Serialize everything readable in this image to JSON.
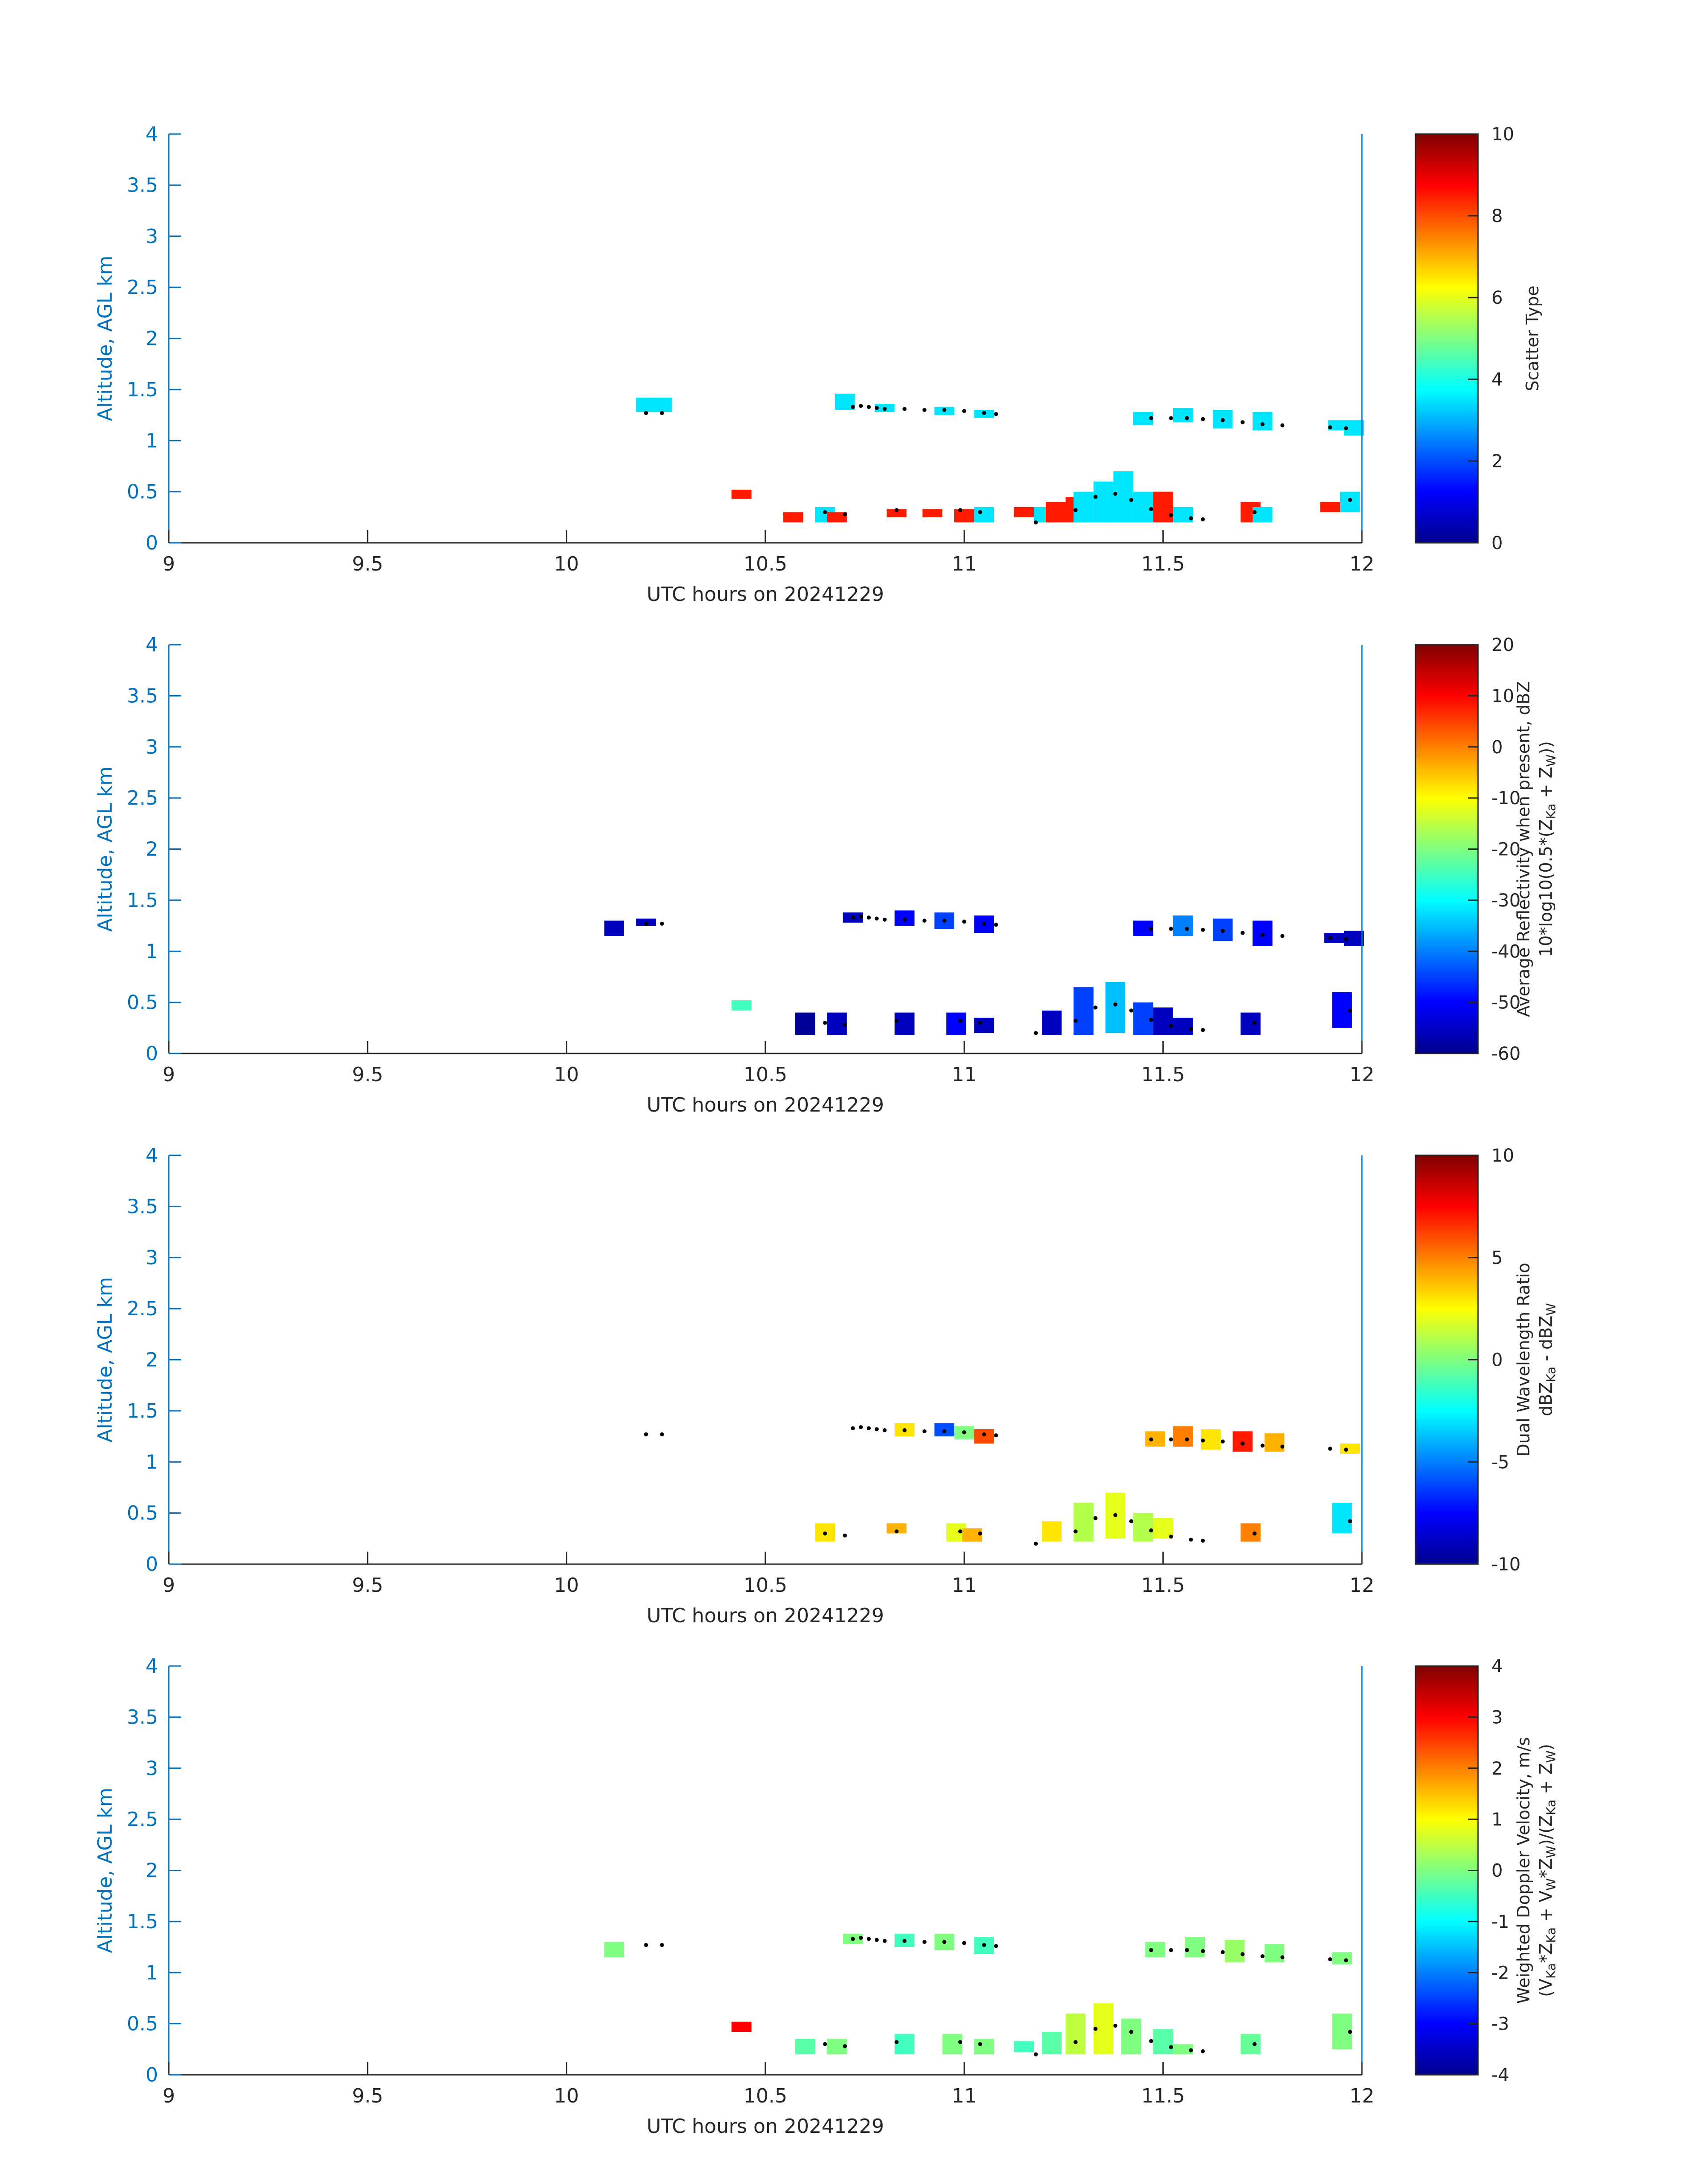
{
  "chart_data": [
    {
      "type": "heatmap",
      "panel": "scatter-type",
      "xlabel": "UTC hours on 20241229",
      "ylabel": "Altitude, AGL km",
      "xlim": [
        9,
        12
      ],
      "ylim": [
        0,
        4
      ],
      "xticks": [
        "9",
        "9.5",
        "10",
        "10.5",
        "11",
        "11.5",
        "12"
      ],
      "yticks": [
        "0",
        "0.5",
        "1",
        "1.5",
        "2",
        "2.5",
        "3",
        "3.5",
        "4"
      ],
      "colorbar": {
        "label_lines": [
          "Scatter Type"
        ],
        "clim": [
          0,
          10
        ],
        "ticks": [
          "0",
          "2",
          "4",
          "6",
          "8",
          "10"
        ]
      },
      "cells": [
        [
          10.2,
          1.28,
          1.42,
          3.5
        ],
        [
          10.24,
          1.28,
          1.42,
          3.5
        ],
        [
          10.7,
          1.3,
          1.46,
          3.5
        ],
        [
          10.8,
          1.28,
          1.36,
          3.5
        ],
        [
          10.95,
          1.25,
          1.33,
          3.5
        ],
        [
          11.05,
          1.22,
          1.3,
          3.5
        ],
        [
          11.45,
          1.15,
          1.28,
          3.5
        ],
        [
          11.55,
          1.18,
          1.32,
          3.5
        ],
        [
          11.65,
          1.12,
          1.3,
          3.5
        ],
        [
          11.75,
          1.1,
          1.28,
          3.5
        ],
        [
          11.94,
          1.1,
          1.2,
          3.5
        ],
        [
          11.98,
          1.05,
          1.2,
          3.5
        ],
        [
          10.44,
          0.43,
          0.52,
          8.5
        ],
        [
          10.57,
          0.2,
          0.3,
          8.5
        ],
        [
          10.65,
          0.2,
          0.35,
          3.5
        ],
        [
          10.68,
          0.2,
          0.3,
          8.5
        ],
        [
          10.83,
          0.25,
          0.33,
          8.5
        ],
        [
          10.92,
          0.25,
          0.33,
          8.5
        ],
        [
          11.0,
          0.2,
          0.33,
          8.5
        ],
        [
          11.05,
          0.2,
          0.35,
          3.5
        ],
        [
          11.15,
          0.25,
          0.35,
          8.5
        ],
        [
          11.2,
          0.2,
          0.35,
          3.5
        ],
        [
          11.23,
          0.2,
          0.4,
          8.5
        ],
        [
          11.28,
          0.2,
          0.45,
          8.5
        ],
        [
          11.3,
          0.2,
          0.5,
          3.5
        ],
        [
          11.35,
          0.2,
          0.6,
          3.5
        ],
        [
          11.4,
          0.2,
          0.7,
          3.5
        ],
        [
          11.45,
          0.2,
          0.5,
          3.5
        ],
        [
          11.5,
          0.2,
          0.5,
          8.5
        ],
        [
          11.55,
          0.2,
          0.35,
          3.5
        ],
        [
          11.72,
          0.2,
          0.4,
          8.5
        ],
        [
          11.75,
          0.2,
          0.35,
          3.5
        ],
        [
          11.92,
          0.3,
          0.4,
          8.5
        ],
        [
          11.97,
          0.3,
          0.5,
          3.5
        ]
      ]
    },
    {
      "type": "heatmap",
      "panel": "reflectivity",
      "xlabel": "UTC hours on 20241229",
      "ylabel": "Altitude, AGL km",
      "xlim": [
        9,
        12
      ],
      "ylim": [
        0,
        4
      ],
      "xticks": [
        "9",
        "9.5",
        "10",
        "10.5",
        "11",
        "11.5",
        "12"
      ],
      "yticks": [
        "0",
        "0.5",
        "1",
        "1.5",
        "2",
        "2.5",
        "3",
        "3.5",
        "4"
      ],
      "colorbar": {
        "label_lines": [
          "Average Reflectivity when present, dBZ",
          "10*log10(0.5*(Z",
          "Ka",
          " + Z",
          "W",
          "))"
        ],
        "clim": [
          -60,
          20
        ],
        "ticks": [
          "-60",
          "-50",
          "-40",
          "-30",
          "-20",
          "-10",
          "0",
          "10",
          "20"
        ]
      },
      "cells": [
        [
          10.12,
          1.15,
          1.3,
          -55
        ],
        [
          10.2,
          1.25,
          1.32,
          -55
        ],
        [
          10.72,
          1.28,
          1.38,
          -55
        ],
        [
          10.85,
          1.25,
          1.4,
          -50
        ],
        [
          10.95,
          1.22,
          1.38,
          -45
        ],
        [
          11.05,
          1.18,
          1.35,
          -50
        ],
        [
          11.45,
          1.15,
          1.3,
          -50
        ],
        [
          11.55,
          1.15,
          1.35,
          -40
        ],
        [
          11.65,
          1.1,
          1.32,
          -45
        ],
        [
          11.75,
          1.05,
          1.3,
          -50
        ],
        [
          11.93,
          1.08,
          1.18,
          -55
        ],
        [
          11.98,
          1.05,
          1.2,
          -55
        ],
        [
          10.44,
          0.42,
          0.52,
          -25
        ],
        [
          10.6,
          0.18,
          0.4,
          -58
        ],
        [
          10.68,
          0.18,
          0.4,
          -55
        ],
        [
          10.85,
          0.18,
          0.4,
          -55
        ],
        [
          10.98,
          0.18,
          0.4,
          -50
        ],
        [
          11.05,
          0.2,
          0.35,
          -55
        ],
        [
          11.22,
          0.18,
          0.42,
          -55
        ],
        [
          11.3,
          0.18,
          0.65,
          -45
        ],
        [
          11.38,
          0.2,
          0.7,
          -35
        ],
        [
          11.45,
          0.18,
          0.5,
          -45
        ],
        [
          11.5,
          0.18,
          0.45,
          -55
        ],
        [
          11.55,
          0.18,
          0.35,
          -55
        ],
        [
          11.72,
          0.18,
          0.4,
          -55
        ],
        [
          11.95,
          0.25,
          0.6,
          -50
        ]
      ]
    },
    {
      "type": "heatmap",
      "panel": "dwr",
      "xlabel": "UTC hours on 20241229",
      "ylabel": "Altitude, AGL km",
      "xlim": [
        9,
        12
      ],
      "ylim": [
        0,
        4
      ],
      "xticks": [
        "9",
        "9.5",
        "10",
        "10.5",
        "11",
        "11.5",
        "12"
      ],
      "yticks": [
        "0",
        "0.5",
        "1",
        "1.5",
        "2",
        "2.5",
        "3",
        "3.5",
        "4"
      ],
      "colorbar": {
        "label_lines": [
          "Dual Wavelength Ratio",
          "dBZ",
          "Ka",
          " - dBZ",
          "W"
        ],
        "clim": [
          -10,
          10
        ],
        "ticks": [
          "-10",
          "-5",
          "0",
          "5",
          "10"
        ]
      },
      "cells": [
        [
          10.85,
          1.25,
          1.38,
          3
        ],
        [
          10.95,
          1.25,
          1.38,
          -6
        ],
        [
          11.0,
          1.22,
          1.35,
          0
        ],
        [
          11.05,
          1.18,
          1.32,
          6
        ],
        [
          11.48,
          1.15,
          1.3,
          4
        ],
        [
          11.55,
          1.15,
          1.35,
          5
        ],
        [
          11.62,
          1.12,
          1.32,
          3
        ],
        [
          11.7,
          1.1,
          1.3,
          7
        ],
        [
          11.78,
          1.1,
          1.28,
          4
        ],
        [
          11.97,
          1.08,
          1.18,
          3
        ],
        [
          10.65,
          0.22,
          0.4,
          3
        ],
        [
          10.83,
          0.3,
          0.4,
          4
        ],
        [
          10.98,
          0.22,
          0.4,
          2
        ],
        [
          11.02,
          0.22,
          0.35,
          4
        ],
        [
          11.22,
          0.22,
          0.42,
          3
        ],
        [
          11.3,
          0.22,
          0.6,
          1
        ],
        [
          11.38,
          0.25,
          0.7,
          2
        ],
        [
          11.45,
          0.22,
          0.5,
          1
        ],
        [
          11.5,
          0.25,
          0.45,
          2
        ],
        [
          11.72,
          0.22,
          0.4,
          5
        ],
        [
          11.95,
          0.3,
          0.6,
          -3
        ]
      ]
    },
    {
      "type": "heatmap",
      "panel": "doppler",
      "xlabel": "UTC hours on 20241229",
      "ylabel": "Altitude, AGL km",
      "xlim": [
        9,
        12
      ],
      "ylim": [
        0,
        4
      ],
      "xticks": [
        "9",
        "9.5",
        "10",
        "10.5",
        "11",
        "11.5",
        "12"
      ],
      "yticks": [
        "0",
        "0.5",
        "1",
        "1.5",
        "2",
        "2.5",
        "3",
        "3.5",
        "4"
      ],
      "colorbar": {
        "label_lines": [
          "Weighted Doppler Velocity, m/s",
          "(V",
          "Ka",
          "*Z",
          "Ka",
          " + V",
          "W",
          "*Z",
          "W",
          ")/(Z",
          "Ka",
          " + Z",
          "W",
          ")"
        ],
        "clim": [
          -4,
          4
        ],
        "ticks": [
          "-4",
          "-3",
          "-2",
          "-1",
          "0",
          "1",
          "2",
          "3",
          "4"
        ]
      },
      "cells": [
        [
          10.12,
          1.15,
          1.3,
          0
        ],
        [
          10.72,
          1.28,
          1.38,
          0
        ],
        [
          10.85,
          1.25,
          1.38,
          -0.5
        ],
        [
          10.95,
          1.22,
          1.38,
          0
        ],
        [
          11.05,
          1.18,
          1.35,
          -0.5
        ],
        [
          11.48,
          1.15,
          1.3,
          0
        ],
        [
          11.58,
          1.15,
          1.35,
          0
        ],
        [
          11.68,
          1.1,
          1.32,
          0.2
        ],
        [
          11.78,
          1.1,
          1.28,
          0
        ],
        [
          11.95,
          1.08,
          1.2,
          0
        ],
        [
          10.44,
          0.42,
          0.52,
          3
        ],
        [
          10.6,
          0.2,
          0.35,
          -0.3
        ],
        [
          10.68,
          0.2,
          0.35,
          0
        ],
        [
          10.85,
          0.2,
          0.4,
          -0.5
        ],
        [
          10.97,
          0.2,
          0.4,
          0
        ],
        [
          11.05,
          0.2,
          0.35,
          0
        ],
        [
          11.15,
          0.22,
          0.33,
          -0.5
        ],
        [
          11.22,
          0.2,
          0.42,
          -0.3
        ],
        [
          11.28,
          0.2,
          0.6,
          0.5
        ],
        [
          11.35,
          0.2,
          0.7,
          0.8
        ],
        [
          11.42,
          0.2,
          0.55,
          0
        ],
        [
          11.5,
          0.2,
          0.45,
          -0.3
        ],
        [
          11.55,
          0.2,
          0.3,
          0
        ],
        [
          11.72,
          0.2,
          0.4,
          -0.2
        ],
        [
          11.95,
          0.25,
          0.6,
          0
        ]
      ]
    }
  ],
  "cloud_top_dots": [
    [
      10.2,
      1.27
    ],
    [
      10.24,
      1.27
    ],
    [
      10.72,
      1.33
    ],
    [
      10.74,
      1.34
    ],
    [
      10.76,
      1.33
    ],
    [
      10.78,
      1.32
    ],
    [
      10.8,
      1.31
    ],
    [
      10.85,
      1.31
    ],
    [
      10.9,
      1.3
    ],
    [
      10.95,
      1.3
    ],
    [
      11.0,
      1.29
    ],
    [
      11.05,
      1.27
    ],
    [
      11.08,
      1.26
    ],
    [
      11.47,
      1.22
    ],
    [
      11.52,
      1.22
    ],
    [
      11.56,
      1.22
    ],
    [
      11.6,
      1.21
    ],
    [
      11.65,
      1.2
    ],
    [
      11.7,
      1.18
    ],
    [
      11.75,
      1.16
    ],
    [
      11.8,
      1.15
    ],
    [
      11.92,
      1.13
    ],
    [
      11.96,
      1.12
    ],
    [
      10.65,
      0.3
    ],
    [
      10.7,
      0.28
    ],
    [
      10.83,
      0.32
    ],
    [
      10.99,
      0.32
    ],
    [
      11.04,
      0.3
    ],
    [
      11.18,
      0.2
    ],
    [
      11.28,
      0.32
    ],
    [
      11.33,
      0.45
    ],
    [
      11.38,
      0.48
    ],
    [
      11.42,
      0.42
    ],
    [
      11.47,
      0.33
    ],
    [
      11.52,
      0.27
    ],
    [
      11.57,
      0.24
    ],
    [
      11.6,
      0.23
    ],
    [
      11.73,
      0.3
    ],
    [
      11.97,
      0.42
    ]
  ]
}
